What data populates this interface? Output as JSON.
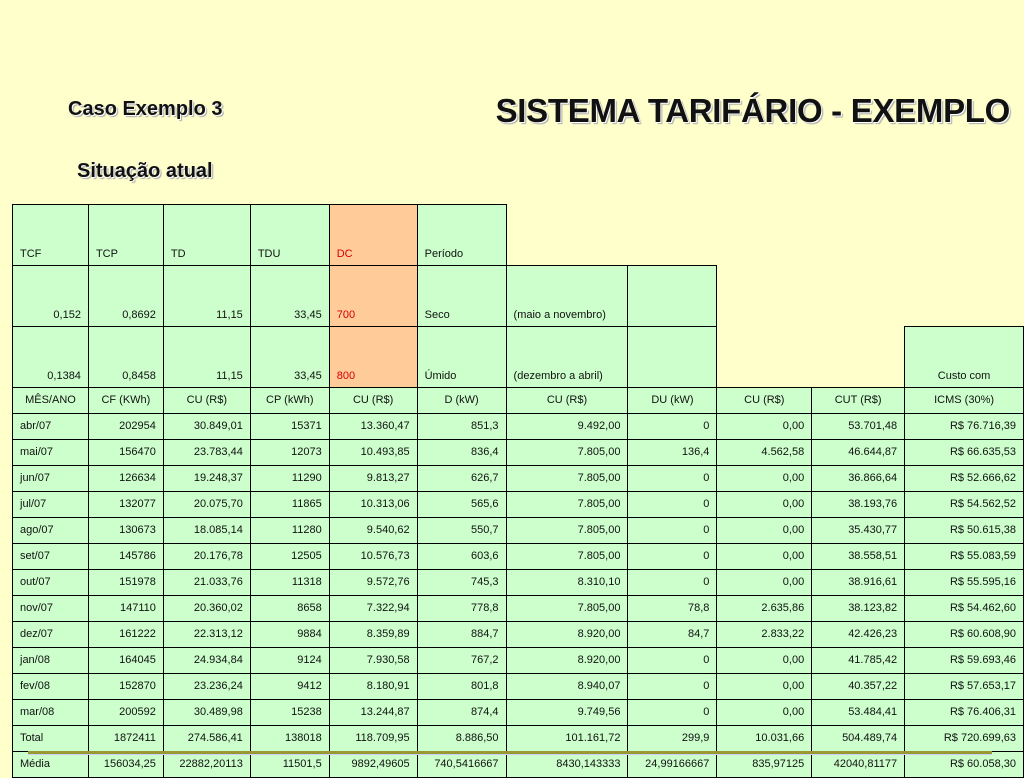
{
  "title": "SISTEMA TARIFÁRIO - EXEMPLO",
  "caso": "Caso Exemplo 3",
  "situacao": "Situação atual",
  "params_header": [
    "TCF",
    "TCP",
    "TD",
    "TDU",
    "DC",
    "Período"
  ],
  "seco": {
    "tcf": "0,152",
    "tcp": "0,8692",
    "td": "11,15",
    "tdu": "33,45",
    "dc": "700",
    "periodo": "Seco",
    "meses": "(maio a novembro)"
  },
  "umido": {
    "tcf": "0,1384",
    "tcp": "0,8458",
    "td": "11,15",
    "tdu": "33,45",
    "dc": "800",
    "periodo": "Úmido",
    "meses": "(dezembro a abril)"
  },
  "custo_com": "Custo com",
  "columns": [
    "MÊS/ANO",
    "CF (KWh)",
    "CU (R$)",
    "CP (kWh)",
    "CU (R$)",
    "D (kW)",
    "CU (R$)",
    "DU (kW)",
    "CU (R$)",
    "CUT (R$)",
    "ICMS (30%)"
  ],
  "rows": [
    [
      "abr/07",
      "202954",
      "30.849,01",
      "15371",
      "13.360,47",
      "851,3",
      "9.492,00",
      "0",
      "0,00",
      "53.701,48",
      "R$ 76.716,39"
    ],
    [
      "mai/07",
      "156470",
      "23.783,44",
      "12073",
      "10.493,85",
      "836,4",
      "7.805,00",
      "136,4",
      "4.562,58",
      "46.644,87",
      "R$ 66.635,53"
    ],
    [
      "jun/07",
      "126634",
      "19.248,37",
      "11290",
      "9.813,27",
      "626,7",
      "7.805,00",
      "0",
      "0,00",
      "36.866,64",
      "R$ 52.666,62"
    ],
    [
      "jul/07",
      "132077",
      "20.075,70",
      "11865",
      "10.313,06",
      "565,6",
      "7.805,00",
      "0",
      "0,00",
      "38.193,76",
      "R$ 54.562,52"
    ],
    [
      "ago/07",
      "130673",
      "18.085,14",
      "11280",
      "9.540,62",
      "550,7",
      "7.805,00",
      "0",
      "0,00",
      "35.430,77",
      "R$ 50.615,38"
    ],
    [
      "set/07",
      "145786",
      "20.176,78",
      "12505",
      "10.576,73",
      "603,6",
      "7.805,00",
      "0",
      "0,00",
      "38.558,51",
      "R$ 55.083,59"
    ],
    [
      "out/07",
      "151978",
      "21.033,76",
      "11318",
      "9.572,76",
      "745,3",
      "8.310,10",
      "0",
      "0,00",
      "38.916,61",
      "R$ 55.595,16"
    ],
    [
      "nov/07",
      "147110",
      "20.360,02",
      "8658",
      "7.322,94",
      "778,8",
      "7.805,00",
      "78,8",
      "2.635,86",
      "38.123,82",
      "R$ 54.462,60"
    ],
    [
      "dez/07",
      "161222",
      "22.313,12",
      "9884",
      "8.359,89",
      "884,7",
      "8.920,00",
      "84,7",
      "2.833,22",
      "42.426,23",
      "R$ 60.608,90"
    ],
    [
      "jan/08",
      "164045",
      "24.934,84",
      "9124",
      "7.930,58",
      "767,2",
      "8.920,00",
      "0",
      "0,00",
      "41.785,42",
      "R$ 59.693,46"
    ],
    [
      "fev/08",
      "152870",
      "23.236,24",
      "9412",
      "8.180,91",
      "801,8",
      "8.940,07",
      "0",
      "0,00",
      "40.357,22",
      "R$ 57.653,17"
    ],
    [
      "mar/08",
      "200592",
      "30.489,98",
      "15238",
      "13.244,87",
      "874,4",
      "9.749,56",
      "0",
      "0,00",
      "53.484,41",
      "R$ 76.406,31"
    ],
    [
      "Total",
      "1872411",
      "274.586,41",
      "138018",
      "118.709,95",
      "8.886,50",
      "101.161,72",
      "299,9",
      "10.031,66",
      "504.489,74",
      "R$ 720.699,63"
    ],
    [
      "Média",
      "156034,25",
      "22882,20113",
      "11501,5",
      "9892,49605",
      "740,5416667",
      "8430,143333",
      "24,99166667",
      "835,97125",
      "42040,81177",
      "R$ 60.058,30"
    ]
  ]
}
